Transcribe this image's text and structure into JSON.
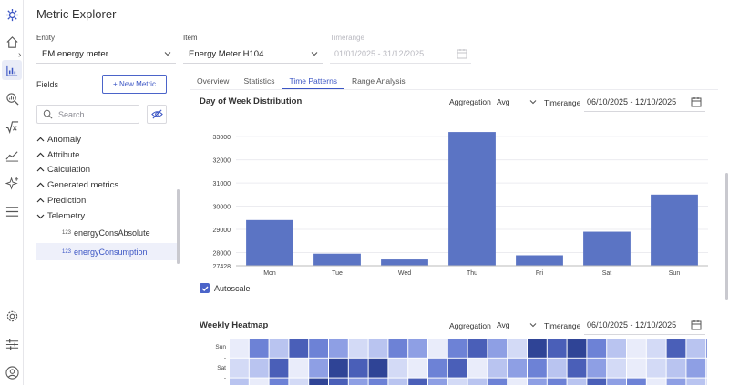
{
  "app": {
    "title": "Metric Explorer"
  },
  "sidebar": {
    "icons": [
      "logo-icon",
      "home-icon",
      "chart-icon",
      "search-chart-icon",
      "sqrt-icon",
      "trend-icon",
      "sparkle-icon",
      "menu-icon",
      "gear-icon",
      "sliders-icon",
      "user-icon"
    ]
  },
  "selectors": {
    "entity_label": "Entity",
    "entity_value": "EM energy meter",
    "item_label": "Item",
    "item_value": "Energy Meter H104",
    "timerange_label": "Timerange",
    "timerange_value": "01/01/2025 - 31/12/2025"
  },
  "fields": {
    "label": "Fields",
    "new_metric_label": "+ New Metric",
    "search_placeholder": "Search",
    "groups": [
      "Anomaly",
      "Attribute",
      "Calculation",
      "Generated metrics",
      "Prediction",
      "Telemetry"
    ],
    "telemetry_items": [
      {
        "type": "123",
        "name": "energyConsAbsolute"
      },
      {
        "type": "123",
        "name": "energyConsumption"
      }
    ]
  },
  "tabs": [
    "Overview",
    "Statistics",
    "Time Patterns",
    "Range Analysis"
  ],
  "active_tab": "Time Patterns",
  "dow": {
    "title": "Day of Week Distribution",
    "aggregation_label": "Aggregation",
    "aggregation_value": "Avg",
    "timerange_label": "Timerange",
    "timerange_value": "06/10/2025 - 12/10/2025",
    "autoscale_label": "Autoscale"
  },
  "heatmap": {
    "title": "Weekly Heatmap",
    "aggregation_label": "Aggregation",
    "aggregation_value": "Avg",
    "timerange_label": "Timerange",
    "timerange_value": "06/10/2025 - 12/10/2025",
    "rows": [
      "-",
      "Sun",
      "-",
      "Sat",
      "-"
    ]
  },
  "colors": {
    "accent": "#3b55c4",
    "bar": "#5b74c4"
  },
  "chart_data": {
    "type": "bar",
    "categories": [
      "Mon",
      "Tue",
      "Wed",
      "Thu",
      "Fri",
      "Sat",
      "Sun"
    ],
    "values": [
      29400,
      27950,
      27700,
      33200,
      27880,
      28900,
      30500
    ],
    "y_ticks": [
      27428,
      28000,
      29000,
      30000,
      31000,
      32000,
      33000
    ],
    "ylim": [
      27428,
      33400
    ],
    "grid": true
  }
}
